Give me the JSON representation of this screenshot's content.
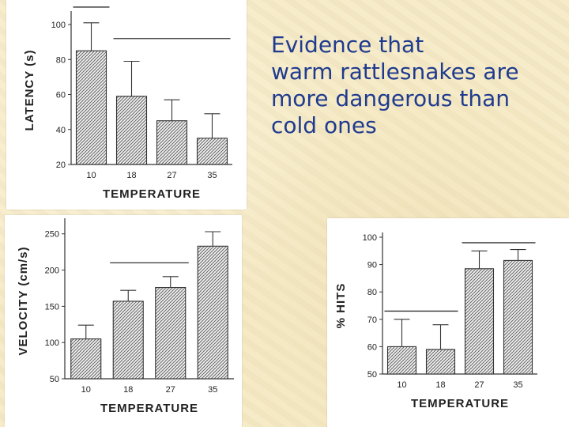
{
  "slide": {
    "title_lines": [
      "Evidence that",
      "warm rattlesnakes are",
      "more dangerous than",
      "cold ones"
    ],
    "background": "#f7ebc6",
    "title_color": "#1f3b8f"
  },
  "chart_data": [
    {
      "type": "bar",
      "title": "",
      "categories": [
        "10",
        "18",
        "27",
        "35"
      ],
      "values": [
        85,
        59,
        45,
        35
      ],
      "error_high": [
        101,
        79,
        57,
        49
      ],
      "ylabel": "LATENCY  (s)",
      "xlabel": "TEMPERATURE",
      "ylim": [
        20,
        105
      ],
      "yticks": [
        20,
        40,
        60,
        80,
        100
      ],
      "grouping_lines": [
        [
          0,
          0,
          110
        ],
        [
          1,
          3,
          92
        ]
      ]
    },
    {
      "type": "bar",
      "title": "",
      "categories": [
        "10",
        "18",
        "27",
        "35"
      ],
      "values": [
        105,
        157,
        176,
        233
      ],
      "error_high": [
        124,
        172,
        191,
        253
      ],
      "ylabel": "VELOCITY   (cm/s)",
      "xlabel": "TEMPERATURE",
      "ylim": [
        50,
        265
      ],
      "yticks": [
        50,
        100,
        150,
        200,
        250
      ],
      "grouping_lines": [
        [
          1,
          2,
          210
        ]
      ]
    },
    {
      "type": "bar",
      "title": "",
      "categories": [
        "10",
        "18",
        "27",
        "35"
      ],
      "values": [
        60,
        59,
        88.5,
        91.5
      ],
      "error_high": [
        70,
        68,
        95,
        95.5
      ],
      "ylabel": "%  HITS",
      "xlabel": "TEMPERATURE",
      "ylim": [
        50,
        100
      ],
      "yticks": [
        50,
        60,
        70,
        80,
        90,
        100
      ],
      "grouping_lines": [
        [
          0,
          1,
          73
        ],
        [
          2,
          3,
          98
        ]
      ]
    }
  ]
}
